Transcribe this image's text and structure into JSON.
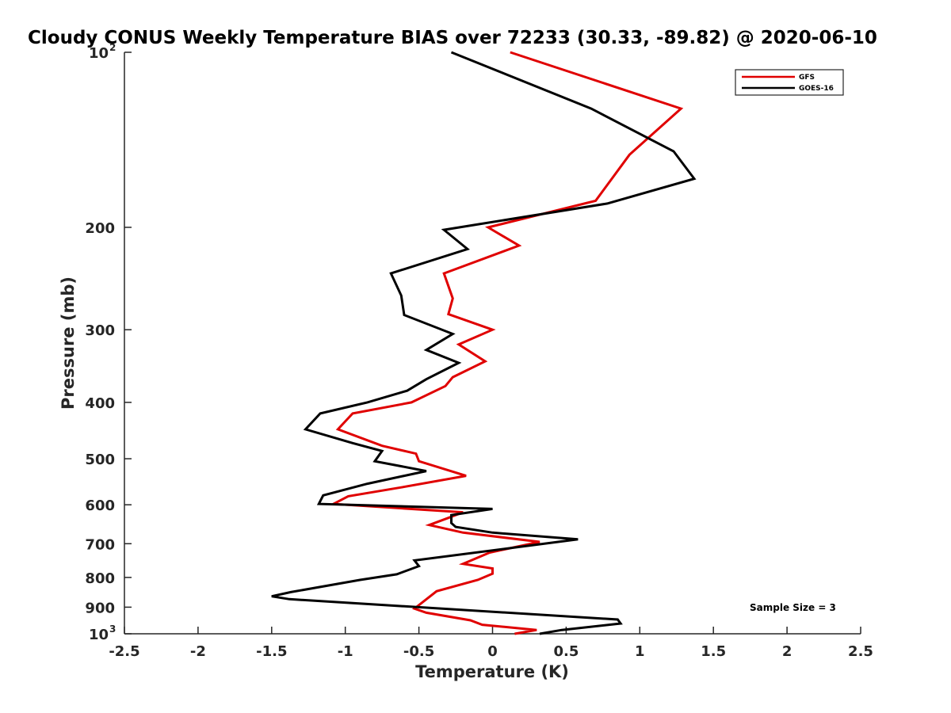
{
  "chart_data": {
    "type": "line",
    "title": "Cloudy CONUS Weekly Temperature BIAS over 72233 (30.33, -89.82) @ 2020-06-10",
    "xlabel": "Temperature (K)",
    "ylabel": "Pressure (mb)",
    "xlim": [
      -2.5,
      2.5
    ],
    "ylim": [
      100,
      1000
    ],
    "yscale": "log",
    "yreversed": true,
    "x_ticks": [
      -2.5,
      -2,
      -1.5,
      -1,
      -0.5,
      0,
      0.5,
      1,
      1.5,
      2,
      2.5
    ],
    "x_tick_labels": [
      "-2.5",
      "-2",
      "-1.5",
      "-1",
      "-0.5",
      "0",
      "0.5",
      "1",
      "1.5",
      "2",
      "2.5"
    ],
    "y_ticks": [
      {
        "value": 100,
        "label": "10",
        "exp": "2"
      },
      {
        "value": 200,
        "label": "200"
      },
      {
        "value": 300,
        "label": "300"
      },
      {
        "value": 400,
        "label": "400"
      },
      {
        "value": 500,
        "label": "500"
      },
      {
        "value": 600,
        "label": "600"
      },
      {
        "value": 700,
        "label": "700"
      },
      {
        "value": 800,
        "label": "800"
      },
      {
        "value": 900,
        "label": "900"
      },
      {
        "value": 1000,
        "label": "10",
        "exp": "3"
      }
    ],
    "legend": {
      "position": "top-right",
      "entries": [
        "GFS",
        "GOES-16"
      ]
    },
    "annotation": "Sample Size = 3",
    "series": [
      {
        "name": "GFS",
        "color": "#e00000",
        "points": [
          [
            0.12,
            100
          ],
          [
            1.28,
            125
          ],
          [
            0.93,
            150
          ],
          [
            0.7,
            180
          ],
          [
            -0.03,
            200
          ],
          [
            0.18,
            215
          ],
          [
            -0.33,
            240
          ],
          [
            -0.27,
            265
          ],
          [
            -0.3,
            282
          ],
          [
            0.0,
            300
          ],
          [
            -0.23,
            318
          ],
          [
            -0.05,
            340
          ],
          [
            -0.27,
            362
          ],
          [
            -0.32,
            375
          ],
          [
            -0.55,
            400
          ],
          [
            -0.95,
            418
          ],
          [
            -1.05,
            445
          ],
          [
            -0.75,
            475
          ],
          [
            -0.52,
            490
          ],
          [
            -0.5,
            505
          ],
          [
            -0.18,
            535
          ],
          [
            -0.62,
            560
          ],
          [
            -0.98,
            580
          ],
          [
            -1.08,
            598
          ],
          [
            -0.2,
            618
          ],
          [
            -0.3,
            632
          ],
          [
            -0.43,
            650
          ],
          [
            -0.2,
            670
          ],
          [
            0.32,
            695
          ],
          [
            -0.02,
            725
          ],
          [
            -0.2,
            758
          ],
          [
            0.0,
            772
          ],
          [
            0.0,
            788
          ],
          [
            -0.1,
            808
          ],
          [
            -0.38,
            845
          ],
          [
            -0.53,
            905
          ],
          [
            -0.45,
            920
          ],
          [
            -0.15,
            948
          ],
          [
            -0.07,
            965
          ],
          [
            0.3,
            985
          ],
          [
            0.15,
            1000
          ]
        ]
      },
      {
        "name": "GOES-16",
        "color": "#000000",
        "points": [
          [
            -0.28,
            100
          ],
          [
            0.67,
            125
          ],
          [
            1.23,
            148
          ],
          [
            1.37,
            165
          ],
          [
            0.78,
            182
          ],
          [
            -0.33,
            202
          ],
          [
            -0.17,
            218
          ],
          [
            -0.69,
            240
          ],
          [
            -0.62,
            262
          ],
          [
            -0.6,
            283
          ],
          [
            -0.27,
            305
          ],
          [
            -0.45,
            325
          ],
          [
            -0.23,
            342
          ],
          [
            -0.45,
            365
          ],
          [
            -0.58,
            382
          ],
          [
            -0.85,
            400
          ],
          [
            -1.17,
            418
          ],
          [
            -1.27,
            445
          ],
          [
            -0.95,
            470
          ],
          [
            -0.75,
            485
          ],
          [
            -0.8,
            505
          ],
          [
            -0.45,
            525
          ],
          [
            -0.85,
            552
          ],
          [
            -1.15,
            578
          ],
          [
            -1.18,
            598
          ],
          [
            0.0,
            610
          ],
          [
            -0.28,
            625
          ],
          [
            -0.28,
            645
          ],
          [
            -0.25,
            655
          ],
          [
            0.0,
            670
          ],
          [
            0.58,
            688
          ],
          [
            -0.53,
            748
          ],
          [
            -0.5,
            765
          ],
          [
            -0.65,
            790
          ],
          [
            -0.9,
            808
          ],
          [
            -1.37,
            848
          ],
          [
            -1.5,
            862
          ],
          [
            -1.38,
            872
          ],
          [
            0.85,
            945
          ],
          [
            0.87,
            960
          ],
          [
            0.47,
            985
          ],
          [
            0.32,
            1000
          ]
        ]
      }
    ]
  }
}
